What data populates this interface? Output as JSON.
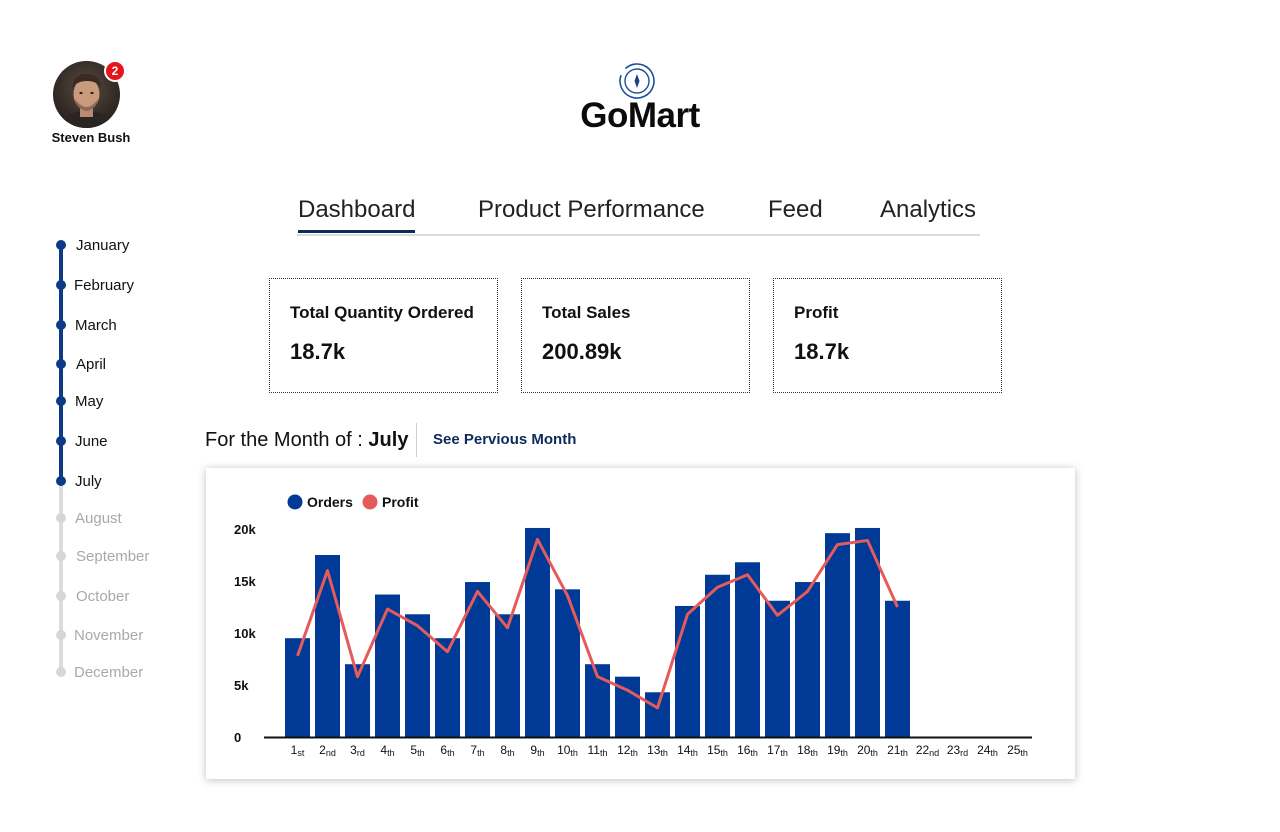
{
  "user": {
    "name": "Steven Bush",
    "notification_count": "2"
  },
  "brand": {
    "name": "GoMart"
  },
  "tabs": [
    {
      "label": "Dashboard",
      "active": true
    },
    {
      "label": "Product Performance",
      "active": false
    },
    {
      "label": "Feed",
      "active": false
    },
    {
      "label": "Analytics",
      "active": false
    }
  ],
  "months": [
    {
      "label": "January",
      "active": true
    },
    {
      "label": "February",
      "active": true
    },
    {
      "label": "March",
      "active": true
    },
    {
      "label": "April",
      "active": true
    },
    {
      "label": "May",
      "active": true
    },
    {
      "label": "June",
      "active": true
    },
    {
      "label": "July",
      "active": true
    },
    {
      "label": "August",
      "active": false
    },
    {
      "label": "September",
      "active": false
    },
    {
      "label": "October",
      "active": false
    },
    {
      "label": "November",
      "active": false
    },
    {
      "label": "December",
      "active": false
    }
  ],
  "cards": [
    {
      "title": "Total Quantity Ordered",
      "value": "18.7k"
    },
    {
      "title": "Total Sales",
      "value": "200.89k"
    },
    {
      "title": "Profit",
      "value": "18.7k"
    }
  ],
  "month_heading": {
    "prefix": "For the Month of : ",
    "month": "July",
    "see_previous": "See Pervious Month"
  },
  "colors": {
    "accent": "#0d2a5c",
    "orders": "#003a96",
    "profit": "#e55b5b",
    "badge": "#e8141b"
  },
  "chart_data": {
    "type": "bar",
    "categories": [
      [
        "1",
        "st"
      ],
      [
        "2",
        "nd"
      ],
      [
        "3",
        "rd"
      ],
      [
        "4",
        "th"
      ],
      [
        "5",
        "th"
      ],
      [
        "6",
        "th"
      ],
      [
        "7",
        "th"
      ],
      [
        "8",
        "th"
      ],
      [
        "9",
        "th"
      ],
      [
        "10",
        "th"
      ],
      [
        "11",
        "th"
      ],
      [
        "12",
        "th"
      ],
      [
        "13",
        "th"
      ],
      [
        "14",
        "th"
      ],
      [
        "15",
        "th"
      ],
      [
        "16",
        "th"
      ],
      [
        "17",
        "th"
      ],
      [
        "18",
        "th"
      ],
      [
        "19",
        "th"
      ],
      [
        "20",
        "th"
      ],
      [
        "21",
        "th"
      ],
      [
        "22",
        "nd"
      ],
      [
        "23",
        "rd"
      ],
      [
        "24",
        "th"
      ],
      [
        "25",
        "th"
      ]
    ],
    "series": [
      {
        "name": "Orders",
        "type": "bar",
        "values": [
          9500,
          17500,
          7000,
          13700,
          11800,
          9500,
          14900,
          11800,
          20100,
          14200,
          7000,
          5800,
          4300,
          12600,
          15600,
          16800,
          13100,
          14900,
          19600,
          20100,
          13100,
          null,
          null,
          null,
          null
        ]
      },
      {
        "name": "Profit",
        "type": "line",
        "values": [
          7800,
          16000,
          5800,
          12300,
          10700,
          8200,
          14000,
          10500,
          19000,
          13600,
          5800,
          4500,
          2800,
          11800,
          14400,
          15600,
          11700,
          14000,
          18500,
          18900,
          12500,
          null,
          null,
          null,
          null
        ]
      }
    ],
    "yticks": [
      {
        "value": 0,
        "label": "0"
      },
      {
        "value": 5000,
        "label": "5k"
      },
      {
        "value": 10000,
        "label": "10k"
      },
      {
        "value": 15000,
        "label": "15k"
      },
      {
        "value": 20000,
        "label": "20k"
      }
    ],
    "ylim": [
      0,
      20000
    ],
    "legend": "top-left",
    "grid": false
  }
}
